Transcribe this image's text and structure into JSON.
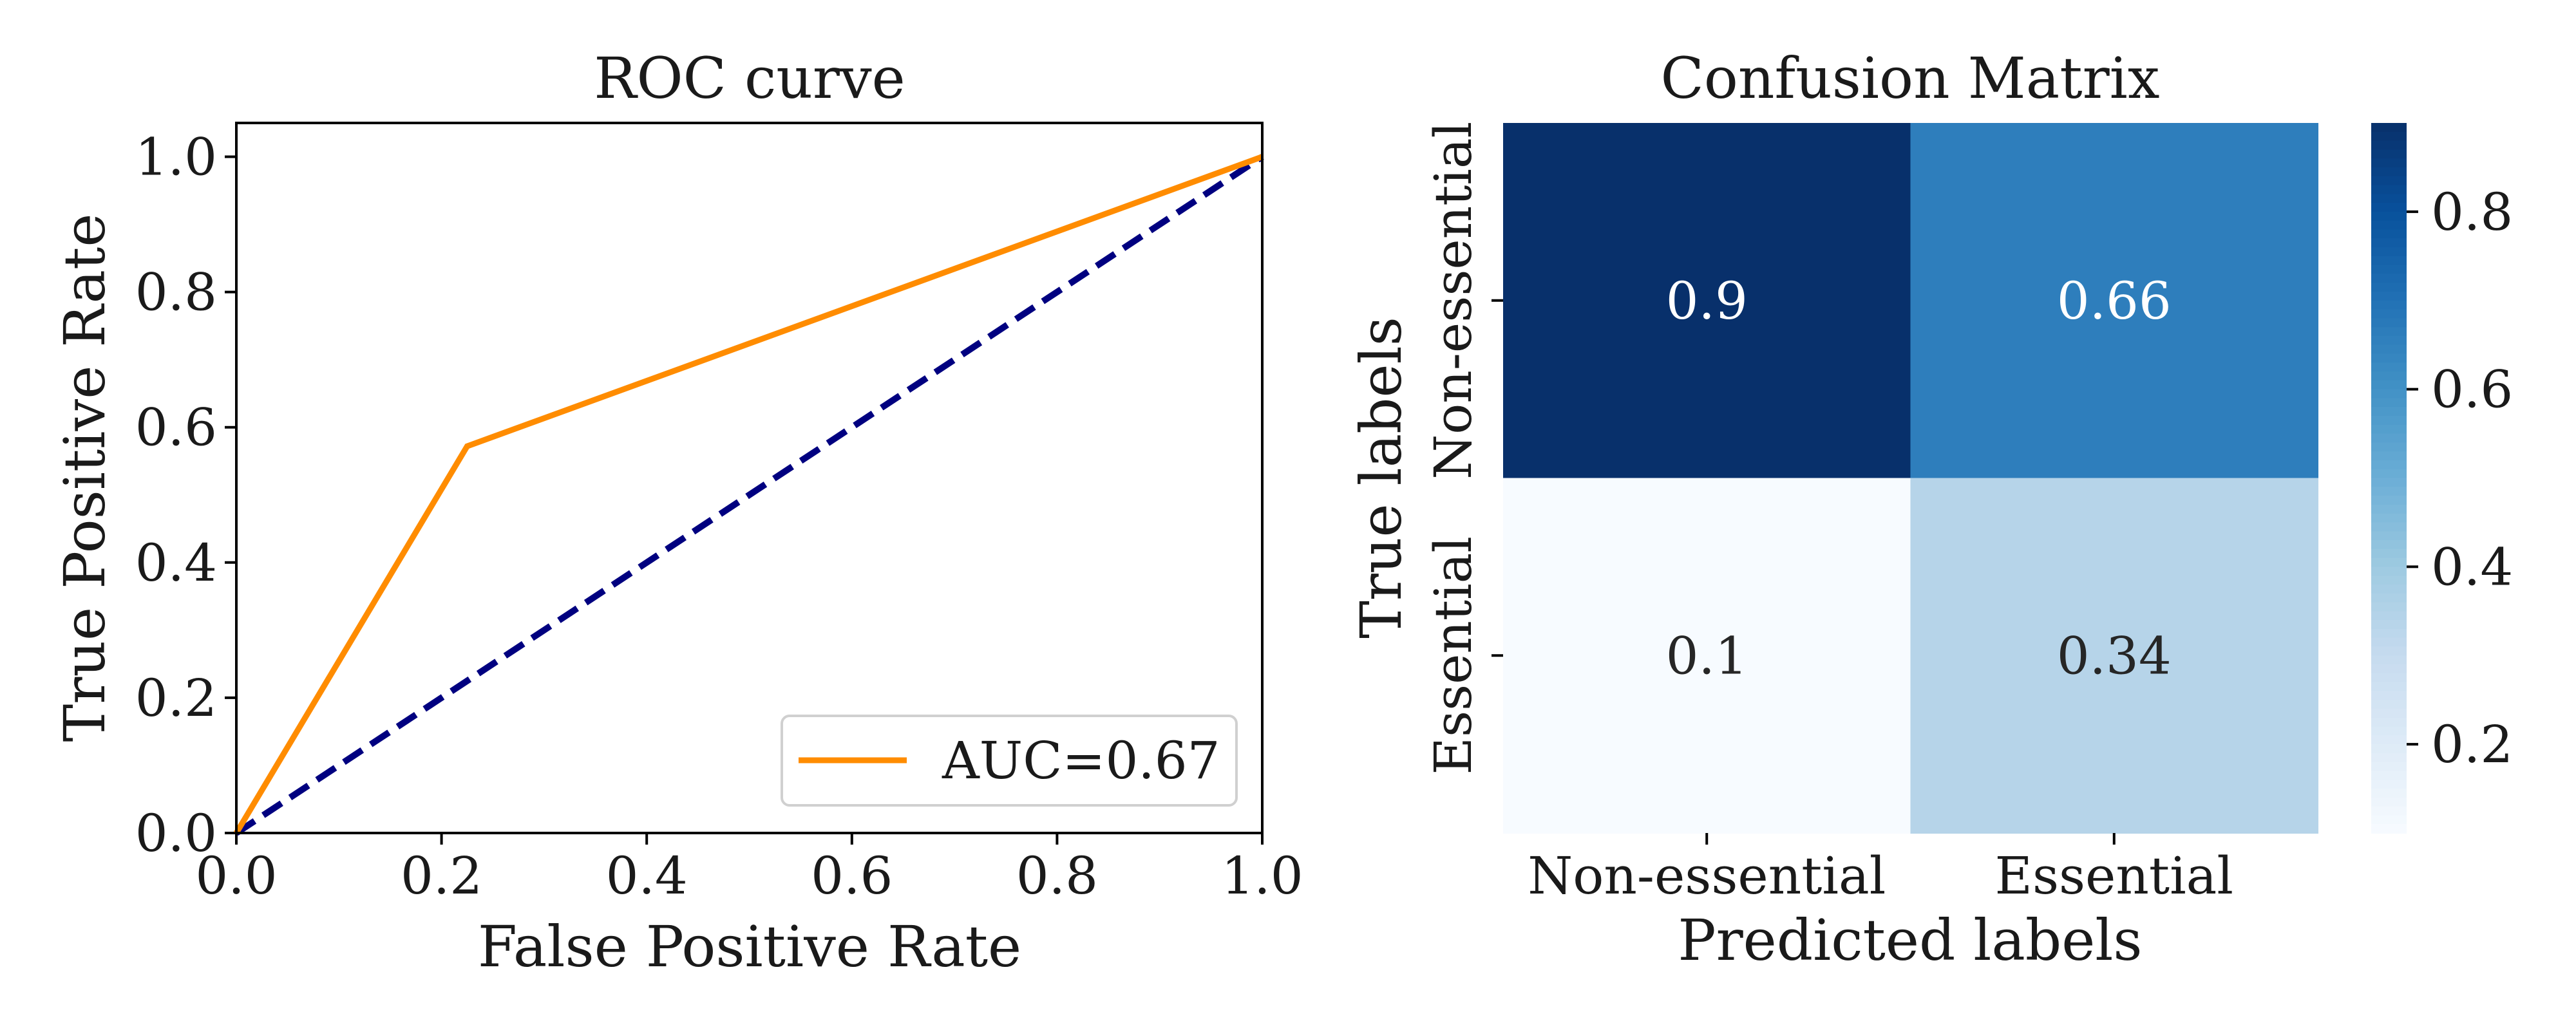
{
  "chart_data": [
    {
      "type": "line",
      "title": "ROC curve",
      "xlabel": "False Positive Rate",
      "ylabel": "True Positive Rate",
      "xlim": [
        0.0,
        1.0
      ],
      "ylim": [
        0.0,
        1.05
      ],
      "xticks": [
        "0.0",
        "0.2",
        "0.4",
        "0.6",
        "0.8",
        "1.0"
      ],
      "yticks": [
        "0.0",
        "0.2",
        "0.4",
        "0.6",
        "0.8",
        "1.0"
      ],
      "legend_position": "lower-right",
      "grid": false,
      "series": [
        {
          "name": "AUC=0.67",
          "color": "#ff8c00",
          "style": "solid",
          "x": [
            0.0,
            0.225,
            1.0
          ],
          "y": [
            0.0,
            0.572,
            1.0
          ]
        },
        {
          "color": "#000080",
          "style": "dashed",
          "x": [
            0.0,
            1.0
          ],
          "y": [
            0.0,
            1.0
          ]
        }
      ]
    },
    {
      "type": "heatmap",
      "title": "Confusion Matrix",
      "xlabel": "Predicted labels",
      "ylabel": "True labels",
      "x_categories": [
        "Non-essential",
        "Essential"
      ],
      "y_categories": [
        "Non-essential",
        "Essential"
      ],
      "values": [
        [
          0.9,
          0.66
        ],
        [
          0.1,
          0.34
        ]
      ],
      "cell_labels": [
        [
          "0.9",
          "0.66"
        ],
        [
          "0.1",
          "0.34"
        ]
      ],
      "colormap": "Blues",
      "colorbar": {
        "range": [
          0.1,
          0.9
        ],
        "ticks": [
          0.2,
          0.4,
          0.6,
          0.8
        ],
        "tick_labels": [
          "0.2",
          "0.4",
          "0.6",
          "0.8"
        ]
      }
    }
  ]
}
